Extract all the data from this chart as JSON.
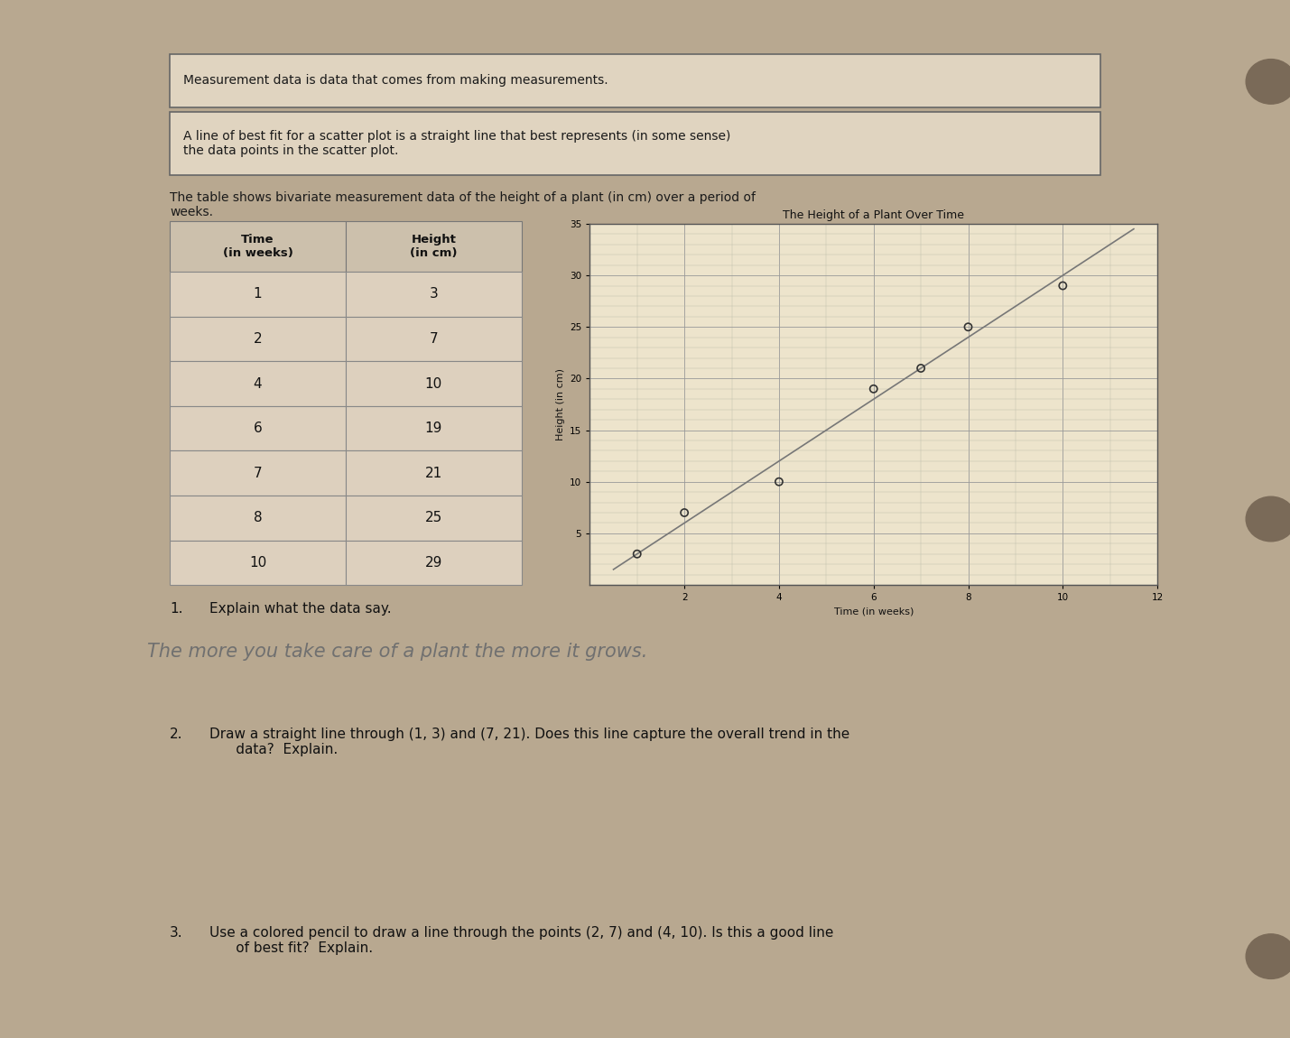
{
  "bg_color": "#b8a890",
  "page_color": "#ddd0be",
  "box1_text": "Measurement data is data that comes from making measurements.",
  "box2_text": "A line of best fit for a scatter plot is a straight line that best represents (in some sense)\nthe data points in the scatter plot.",
  "intro_text": "The table shows bivariate measurement data of the height of a plant (in cm) over a period of\nweeks.",
  "table_headers": [
    "Time\n(in weeks)",
    "Height\n(in cm)"
  ],
  "table_data": [
    [
      1,
      3
    ],
    [
      2,
      7
    ],
    [
      4,
      10
    ],
    [
      6,
      19
    ],
    [
      7,
      21
    ],
    [
      8,
      25
    ],
    [
      10,
      29
    ]
  ],
  "chart_title": "The Height of a Plant Over Time",
  "chart_xlabel": "Time (in weeks)",
  "chart_ylabel": "Height (in cm)",
  "scatter_x": [
    1,
    2,
    4,
    6,
    7,
    8,
    10
  ],
  "scatter_y": [
    3,
    7,
    10,
    19,
    21,
    25,
    29
  ],
  "line_x": [
    1,
    7
  ],
  "line_y": [
    3,
    21
  ],
  "x_min": 0,
  "x_max": 12,
  "y_min": 0,
  "y_max": 35,
  "x_ticks": [
    2,
    4,
    6,
    8,
    10,
    12
  ],
  "y_ticks": [
    5,
    10,
    15,
    20,
    25,
    30,
    35
  ],
  "q1_label": "1.",
  "q1_text": "Explain what the data say.",
  "q1_answer": "The more you take care of a plant the more it grows.",
  "q2_label": "2.",
  "q2_text": "Draw a straight line through (1, 3) and (7, 21). Does this line capture the overall trend in the\n      data?  Explain.",
  "q3_label": "3.",
  "q3_text": "Use a colored pencil to draw a line through the points (2, 7) and (4, 10). Is this a good line\n      of best fit?  Explain."
}
